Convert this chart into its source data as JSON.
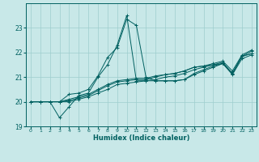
{
  "xlabel": "Humidex (Indice chaleur)",
  "xlim": [
    -0.5,
    23.5
  ],
  "ylim": [
    19,
    24
  ],
  "yticks": [
    19,
    20,
    21,
    22,
    23
  ],
  "xticks": [
    0,
    1,
    2,
    3,
    4,
    5,
    6,
    7,
    8,
    9,
    10,
    11,
    12,
    13,
    14,
    15,
    16,
    17,
    18,
    19,
    20,
    21,
    22,
    23
  ],
  "bg_color": "#c8e8e8",
  "line_color": "#006060",
  "grid_color": "#9ecece",
  "lines": [
    {
      "x": [
        0,
        1,
        2,
        3,
        4,
        5,
        6,
        7,
        8,
        9,
        10,
        11,
        12,
        13,
        14,
        15,
        16,
        17,
        18,
        19,
        20,
        21,
        22,
        23
      ],
      "y": [
        20.0,
        20.0,
        20.0,
        20.0,
        20.3,
        20.35,
        20.5,
        21.05,
        21.8,
        22.2,
        23.35,
        23.1,
        21.0,
        20.85,
        20.85,
        20.85,
        20.9,
        21.1,
        21.25,
        21.4,
        21.55,
        21.15,
        21.85,
        21.95
      ]
    },
    {
      "x": [
        0,
        1,
        2,
        3,
        4,
        5,
        6,
        7,
        8,
        9,
        10,
        11,
        12,
        13,
        14,
        15,
        16,
        17,
        18,
        19,
        20,
        21,
        22,
        23
      ],
      "y": [
        20.0,
        20.0,
        20.0,
        19.35,
        19.8,
        20.25,
        20.35,
        21.0,
        21.5,
        22.3,
        23.5,
        20.85,
        20.85,
        20.85,
        20.85,
        20.85,
        20.9,
        21.15,
        21.3,
        21.45,
        21.55,
        21.15,
        21.85,
        21.95
      ]
    },
    {
      "x": [
        0,
        1,
        2,
        3,
        4,
        5,
        6,
        7,
        8,
        9,
        10,
        11,
        12,
        13,
        14,
        15,
        16,
        17,
        18,
        19,
        20,
        21,
        22,
        23
      ],
      "y": [
        20.0,
        20.0,
        20.0,
        20.0,
        20.05,
        20.15,
        20.25,
        20.45,
        20.65,
        20.8,
        20.85,
        20.9,
        20.9,
        21.0,
        21.1,
        21.15,
        21.25,
        21.4,
        21.45,
        21.5,
        21.6,
        21.15,
        21.85,
        22.05
      ]
    },
    {
      "x": [
        0,
        1,
        2,
        3,
        4,
        5,
        6,
        7,
        8,
        9,
        10,
        11,
        12,
        13,
        14,
        15,
        16,
        17,
        18,
        19,
        20,
        21,
        22,
        23
      ],
      "y": [
        20.0,
        20.0,
        20.0,
        20.0,
        20.1,
        20.2,
        20.3,
        20.5,
        20.7,
        20.85,
        20.9,
        20.95,
        20.95,
        21.05,
        21.1,
        21.15,
        21.25,
        21.4,
        21.45,
        21.55,
        21.65,
        21.25,
        21.9,
        22.1
      ]
    },
    {
      "x": [
        0,
        1,
        2,
        3,
        4,
        5,
        6,
        7,
        8,
        9,
        10,
        11,
        12,
        13,
        14,
        15,
        16,
        17,
        18,
        19,
        20,
        21,
        22,
        23
      ],
      "y": [
        20.0,
        20.0,
        20.0,
        20.0,
        20.0,
        20.1,
        20.2,
        20.35,
        20.5,
        20.7,
        20.75,
        20.8,
        20.85,
        20.9,
        21.0,
        21.05,
        21.15,
        21.3,
        21.4,
        21.5,
        21.55,
        21.1,
        21.75,
        21.9
      ]
    }
  ]
}
